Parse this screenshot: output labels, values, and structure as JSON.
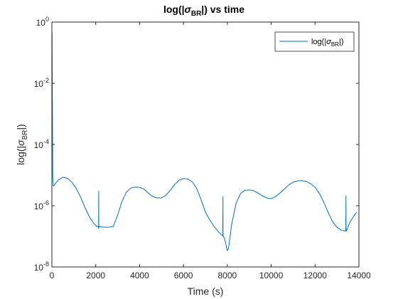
{
  "chart_data": {
    "type": "line",
    "title": {
      "pre": "log(|",
      "sym": "σ",
      "sub": "BR",
      "post": "|) vs time"
    },
    "xlabel": "Time (s)",
    "ylabel": {
      "pre": "log(|",
      "sym": "σ",
      "sub": "BR",
      "post": "|)"
    },
    "xlim": [
      0,
      14000
    ],
    "ylim": [
      1e-08,
      1
    ],
    "yscale": "log",
    "xticks": [
      0,
      2000,
      4000,
      6000,
      8000,
      10000,
      12000,
      14000
    ],
    "xtick_labels": [
      "0",
      "2000",
      "4000",
      "6000",
      "8000",
      "10000",
      "12000",
      "14000"
    ],
    "yticks": [
      1e-08,
      1e-06,
      0.0001,
      0.01,
      1
    ],
    "ytick_labels": [
      {
        "base": "10",
        "exp": "-8"
      },
      {
        "base": "10",
        "exp": "-6"
      },
      {
        "base": "10",
        "exp": "-4"
      },
      {
        "base": "10",
        "exp": "-2"
      },
      {
        "base": "10",
        "exp": "0"
      }
    ],
    "grid": false,
    "legend": {
      "position": "top-right"
    },
    "series": [
      {
        "name": {
          "pre": "log(|",
          "sym": "σ",
          "sub": "BR",
          "post": "|)"
        },
        "color": "#0072BD",
        "x": [
          0,
          10,
          20,
          30,
          40,
          60,
          80,
          150,
          300,
          500,
          700,
          900,
          1100,
          1300,
          1500,
          1700,
          1900,
          2050,
          2120,
          2130,
          2135,
          2140,
          2150,
          2200,
          2400,
          2600,
          2800,
          3000,
          3200,
          3400,
          3600,
          3800,
          4000,
          4200,
          4400,
          4600,
          4800,
          5000,
          5200,
          5400,
          5600,
          5800,
          6000,
          6200,
          6400,
          6600,
          6800,
          7000,
          7200,
          7400,
          7600,
          7750,
          7790,
          7800,
          7805,
          7810,
          7830,
          7900,
          7980,
          8000,
          8050,
          8100,
          8200,
          8400,
          8600,
          8800,
          9000,
          9200,
          9400,
          9600,
          9800,
          10000,
          10200,
          10400,
          10600,
          10800,
          11000,
          11200,
          11400,
          11600,
          11800,
          12000,
          12200,
          12400,
          12600,
          12800,
          13000,
          13200,
          13350,
          13400,
          13410,
          13415,
          13420,
          13430,
          13500,
          13600,
          13800,
          13900
        ],
        "y": [
          0.5,
          0.4,
          0.01,
          0.0003,
          1e-05,
          4.5e-06,
          4.4e-06,
          5.2e-06,
          7e-06,
          8.5e-06,
          8e-06,
          6e-06,
          3.8e-06,
          2e-06,
          9e-07,
          4.5e-07,
          2.7e-07,
          2.1e-07,
          2.1e-07,
          1.8e-07,
          3e-06,
          1.9e-07,
          2.1e-07,
          2.05e-07,
          2e-07,
          2e-07,
          2.1e-07,
          5e-07,
          1.4e-06,
          2.8e-06,
          3.8e-06,
          4.1e-06,
          4e-06,
          3.5e-06,
          2.6e-06,
          2e-06,
          1.8e-06,
          1.8e-06,
          2.2e-06,
          3.2e-06,
          5e-06,
          6.8e-06,
          7.7e-06,
          7.5e-06,
          6e-06,
          3.7e-06,
          1.6e-06,
          6.2e-07,
          3.4e-07,
          2.1e-07,
          1.4e-07,
          1.1e-07,
          1.05e-07,
          2e-06,
          1e-07,
          1e-07,
          1e-07,
          7e-08,
          4e-08,
          3.4e-08,
          4e-08,
          7e-08,
          2.5e-07,
          1.2e-06,
          2.5e-06,
          3.2e-06,
          3.3e-06,
          3.1e-06,
          2.6e-06,
          2.1e-06,
          1.8e-06,
          1.7e-06,
          2e-06,
          2.6e-06,
          3.5e-06,
          4.8e-06,
          5.9e-06,
          6.5e-06,
          6.6e-06,
          6.2e-06,
          5.3e-06,
          4e-06,
          2.5e-06,
          1.3e-06,
          6e-07,
          3e-07,
          2e-07,
          1.6e-07,
          1.5e-07,
          1.5e-07,
          2.1e-06,
          1.5e-07,
          1.5e-07,
          1.5e-07,
          2e-07,
          3e-07,
          5e-07,
          6.2e-07
        ]
      }
    ]
  }
}
